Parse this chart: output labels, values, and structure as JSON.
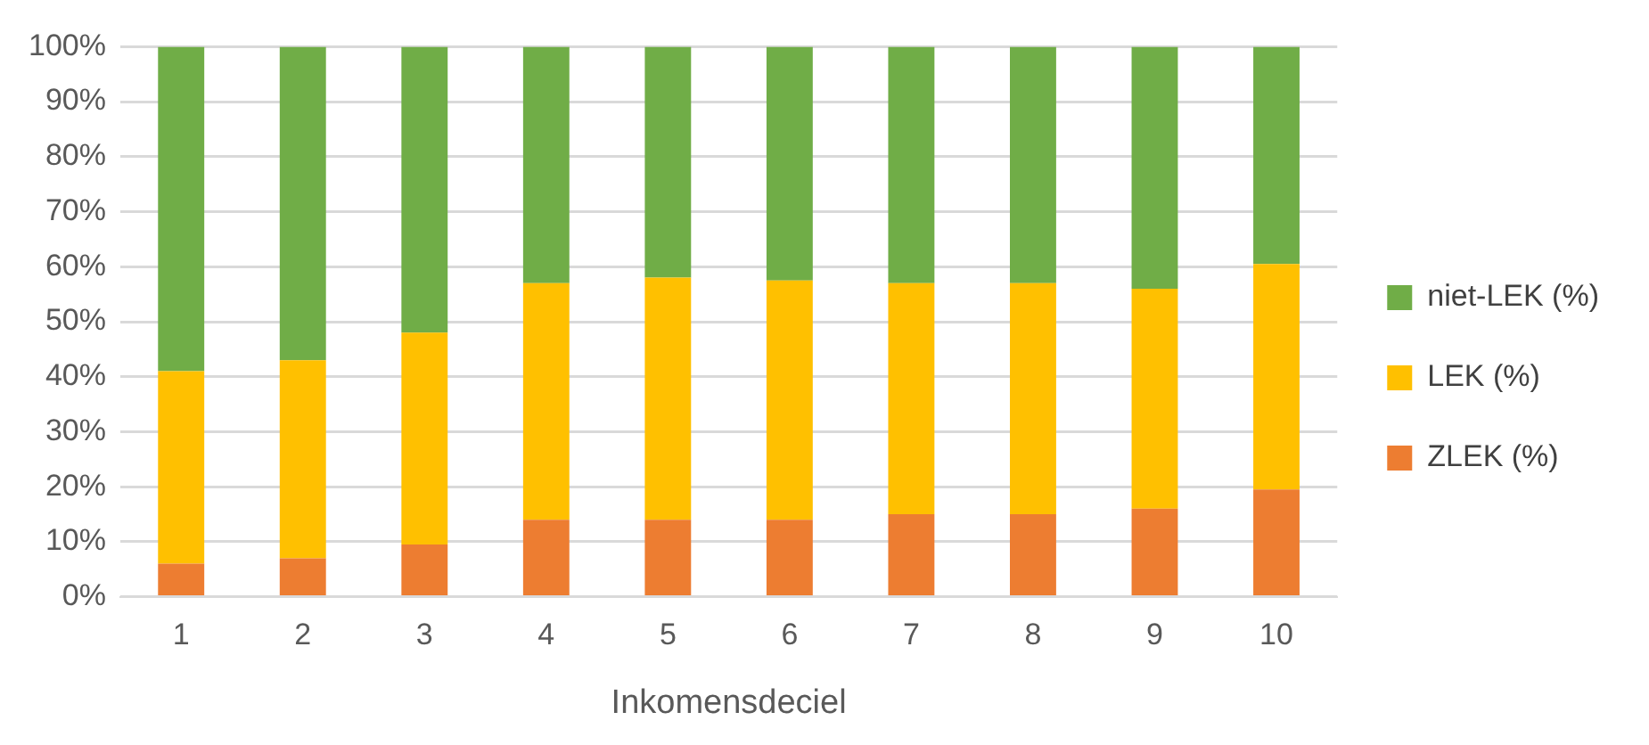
{
  "chart_data": {
    "type": "bar",
    "stacked": true,
    "xlabel": "Inkomensdeciel",
    "categories": [
      "1",
      "2",
      "3",
      "4",
      "5",
      "6",
      "7",
      "8",
      "9",
      "10"
    ],
    "series": [
      {
        "name": "ZLEK (%)",
        "color": "#ed7d31",
        "values": [
          6,
          7,
          9.5,
          14,
          14,
          14,
          15,
          15,
          16,
          19.5
        ]
      },
      {
        "name": "LEK (%)",
        "color": "#ffc000",
        "values": [
          35,
          36,
          38.5,
          43,
          44,
          43.5,
          42,
          42,
          40,
          41
        ]
      },
      {
        "name": "niet-LEK (%)",
        "color": "#70ad47",
        "values": [
          59,
          57,
          52,
          43,
          42,
          42.5,
          43,
          43,
          44,
          39.5
        ]
      }
    ],
    "ylim": [
      0,
      100
    ],
    "yticks": [
      {
        "value": 0,
        "label": "0%"
      },
      {
        "value": 10,
        "label": "10%"
      },
      {
        "value": 20,
        "label": "20%"
      },
      {
        "value": 30,
        "label": "30%"
      },
      {
        "value": 40,
        "label": "40%"
      },
      {
        "value": 50,
        "label": "50%"
      },
      {
        "value": 60,
        "label": "60%"
      },
      {
        "value": 70,
        "label": "70%"
      },
      {
        "value": 80,
        "label": "80%"
      },
      {
        "value": 90,
        "label": "90%"
      },
      {
        "value": 100,
        "label": "100%"
      }
    ],
    "grid": "y",
    "legend": "right"
  }
}
